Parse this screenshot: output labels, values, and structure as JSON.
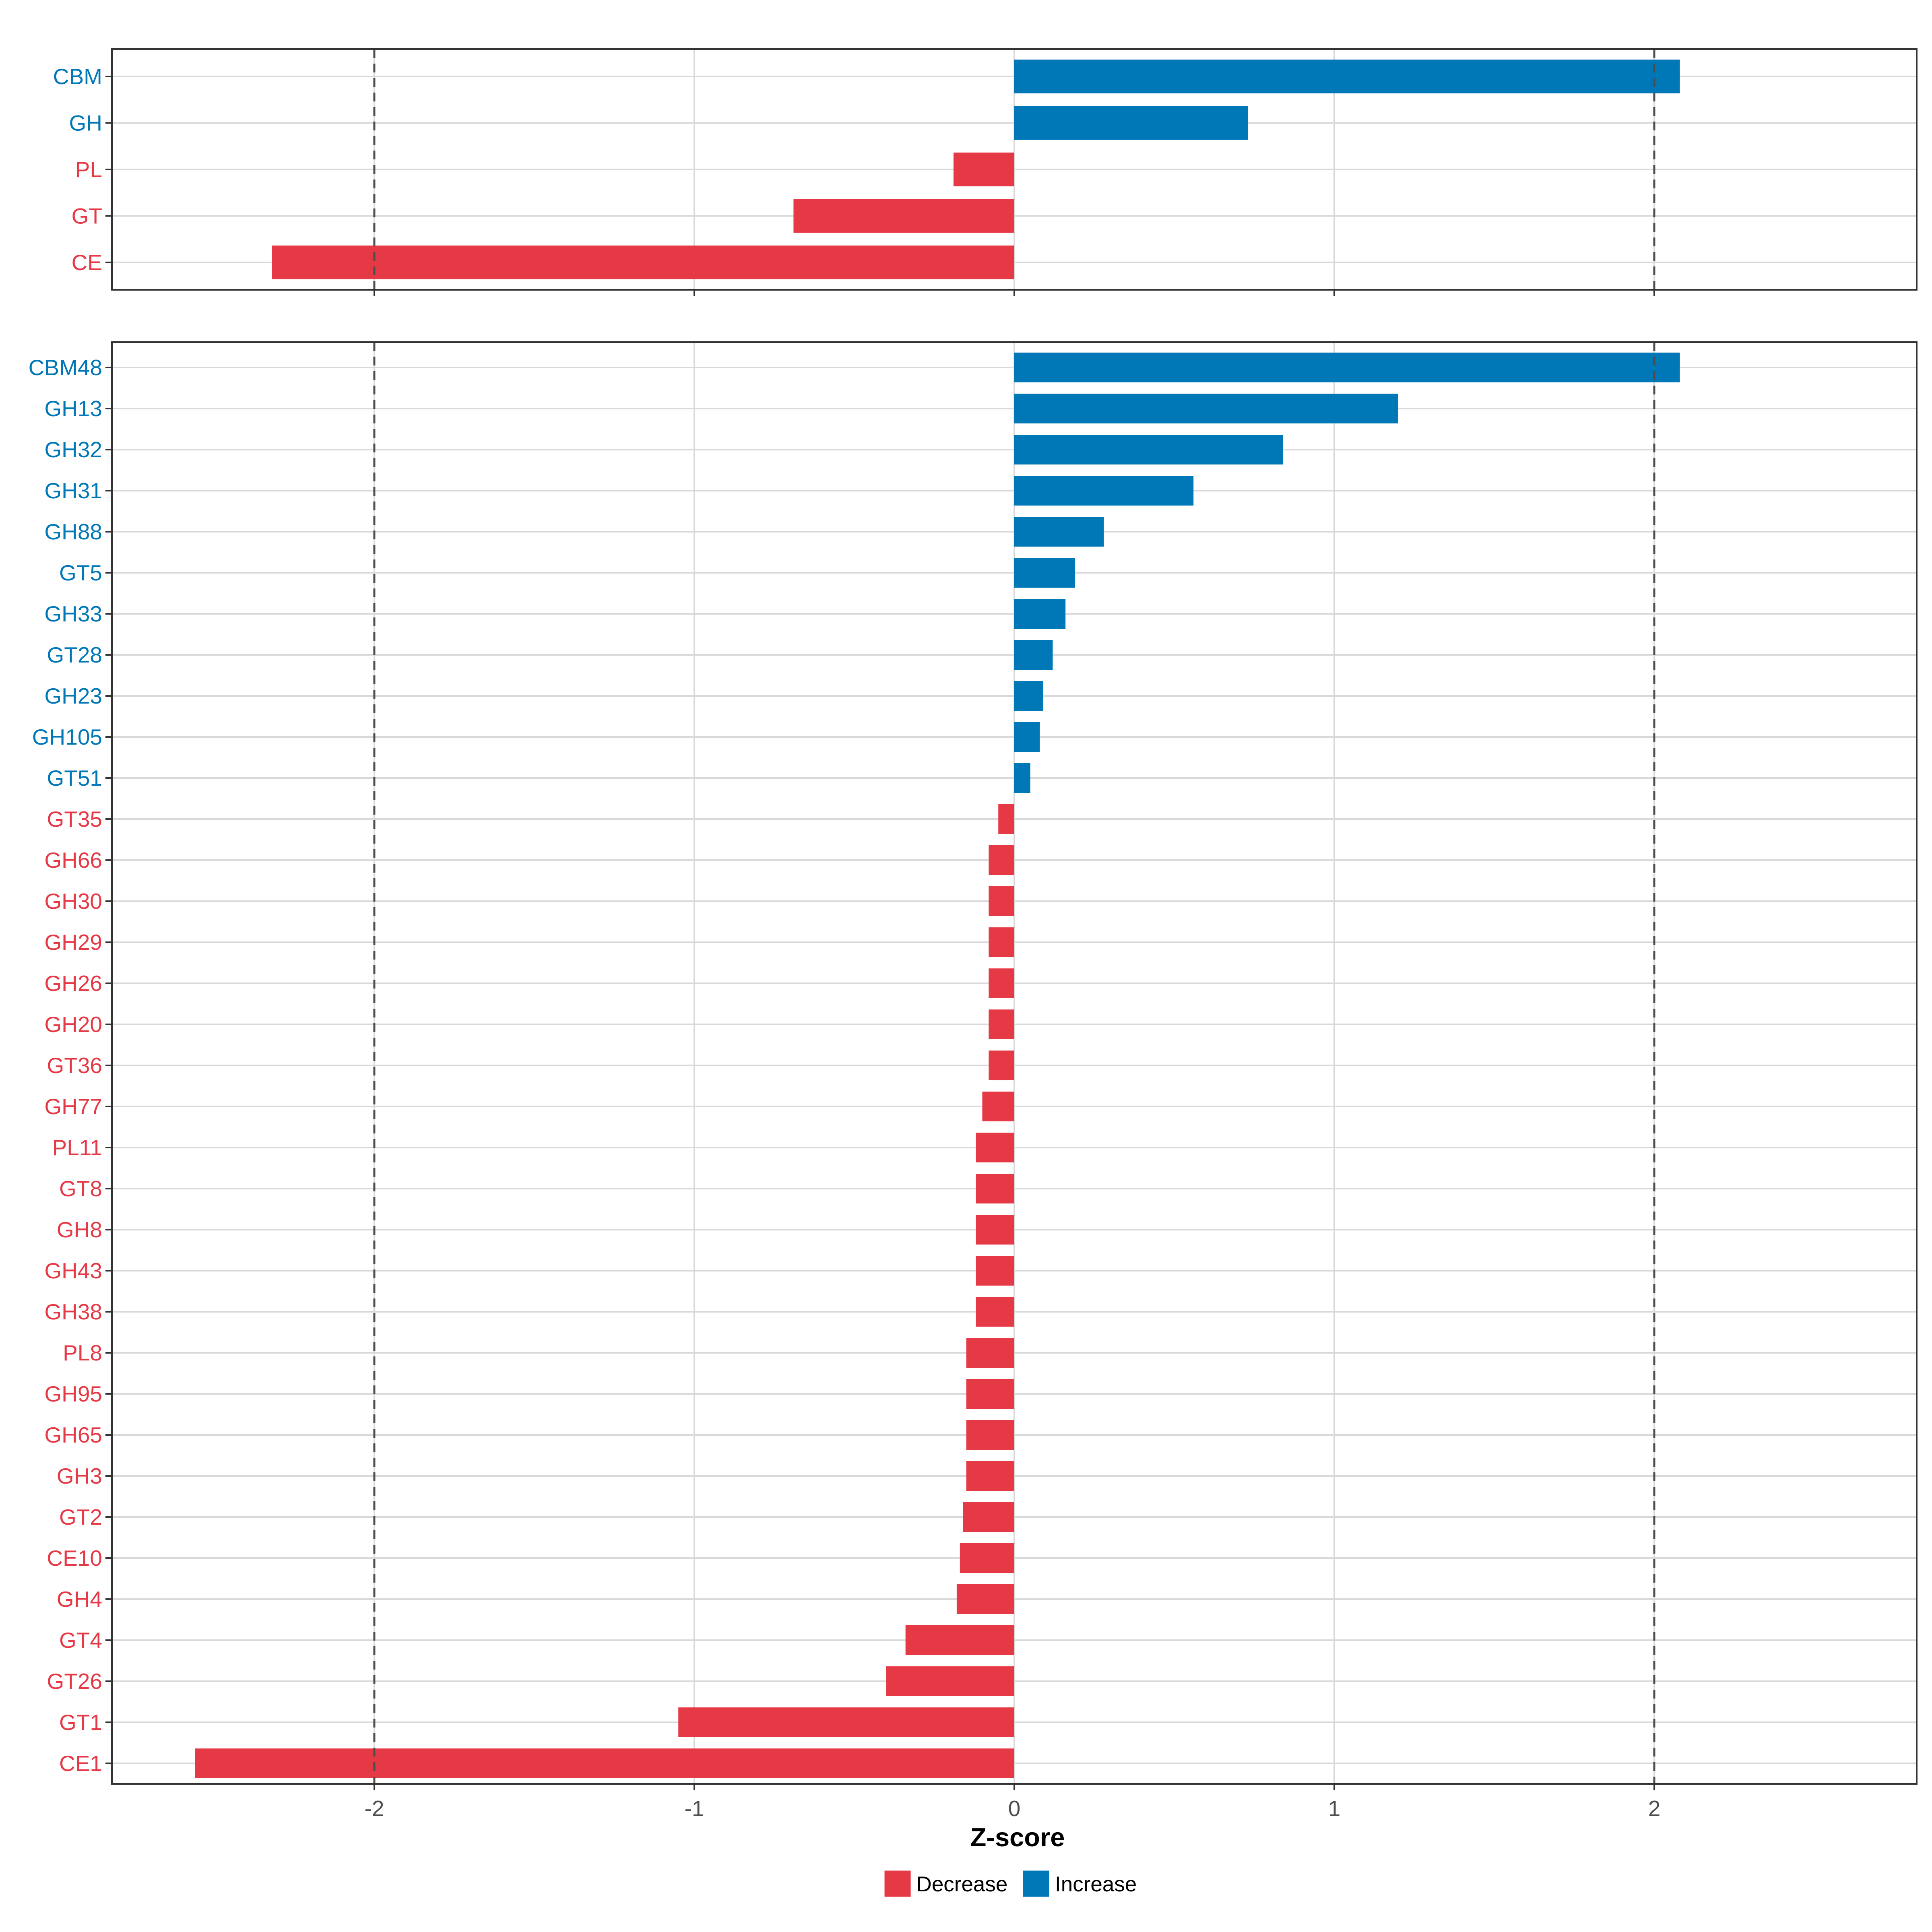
{
  "chart_data": [
    {
      "type": "bar",
      "orientation": "horizontal",
      "panel": "top",
      "categories": [
        "CBM",
        "GH",
        "PL",
        "GT",
        "CE"
      ],
      "values": [
        2.08,
        0.73,
        -0.19,
        -0.69,
        -2.32
      ],
      "xlim": [
        -2.82,
        2.82
      ],
      "reference_lines": [
        -2,
        2
      ],
      "grid": true
    },
    {
      "type": "bar",
      "orientation": "horizontal",
      "panel": "bottom",
      "categories": [
        "CBM48",
        "GH13",
        "GH32",
        "GH31",
        "GH88",
        "GT5",
        "GH33",
        "GT28",
        "GH23",
        "GH105",
        "GT51",
        "GT35",
        "GH66",
        "GH30",
        "GH29",
        "GH26",
        "GH20",
        "GT36",
        "GH77",
        "PL11",
        "GT8",
        "GH8",
        "GH43",
        "GH38",
        "PL8",
        "GH95",
        "GH65",
        "GH3",
        "GT2",
        "CE10",
        "GH4",
        "GT4",
        "GT26",
        "GT1",
        "CE1"
      ],
      "values": [
        2.08,
        1.2,
        0.84,
        0.56,
        0.28,
        0.19,
        0.16,
        0.12,
        0.09,
        0.08,
        0.05,
        -0.05,
        -0.08,
        -0.08,
        -0.08,
        -0.08,
        -0.08,
        -0.08,
        -0.1,
        -0.12,
        -0.12,
        -0.12,
        -0.12,
        -0.12,
        -0.15,
        -0.15,
        -0.15,
        -0.15,
        -0.16,
        -0.17,
        -0.18,
        -0.34,
        -0.4,
        -1.05,
        -2.56
      ],
      "xlim": [
        -2.82,
        2.82
      ],
      "reference_lines": [
        -2,
        2
      ],
      "grid": true,
      "xticks": [
        "-2",
        "-1",
        "0",
        "1",
        "2"
      ],
      "xlabel": "Z-score"
    }
  ],
  "legend": {
    "position": "bottom",
    "items": [
      {
        "label": "Decrease",
        "color": "#E63946"
      },
      {
        "label": "Increase",
        "color": "#0077B6"
      }
    ]
  },
  "colors": {
    "decrease": "#E63946",
    "increase": "#0077B6",
    "grid": "#D9D9D9",
    "panel_border": "#333333",
    "reference_line": "#4D4D4D",
    "tick_text": "#4D4D4D"
  }
}
